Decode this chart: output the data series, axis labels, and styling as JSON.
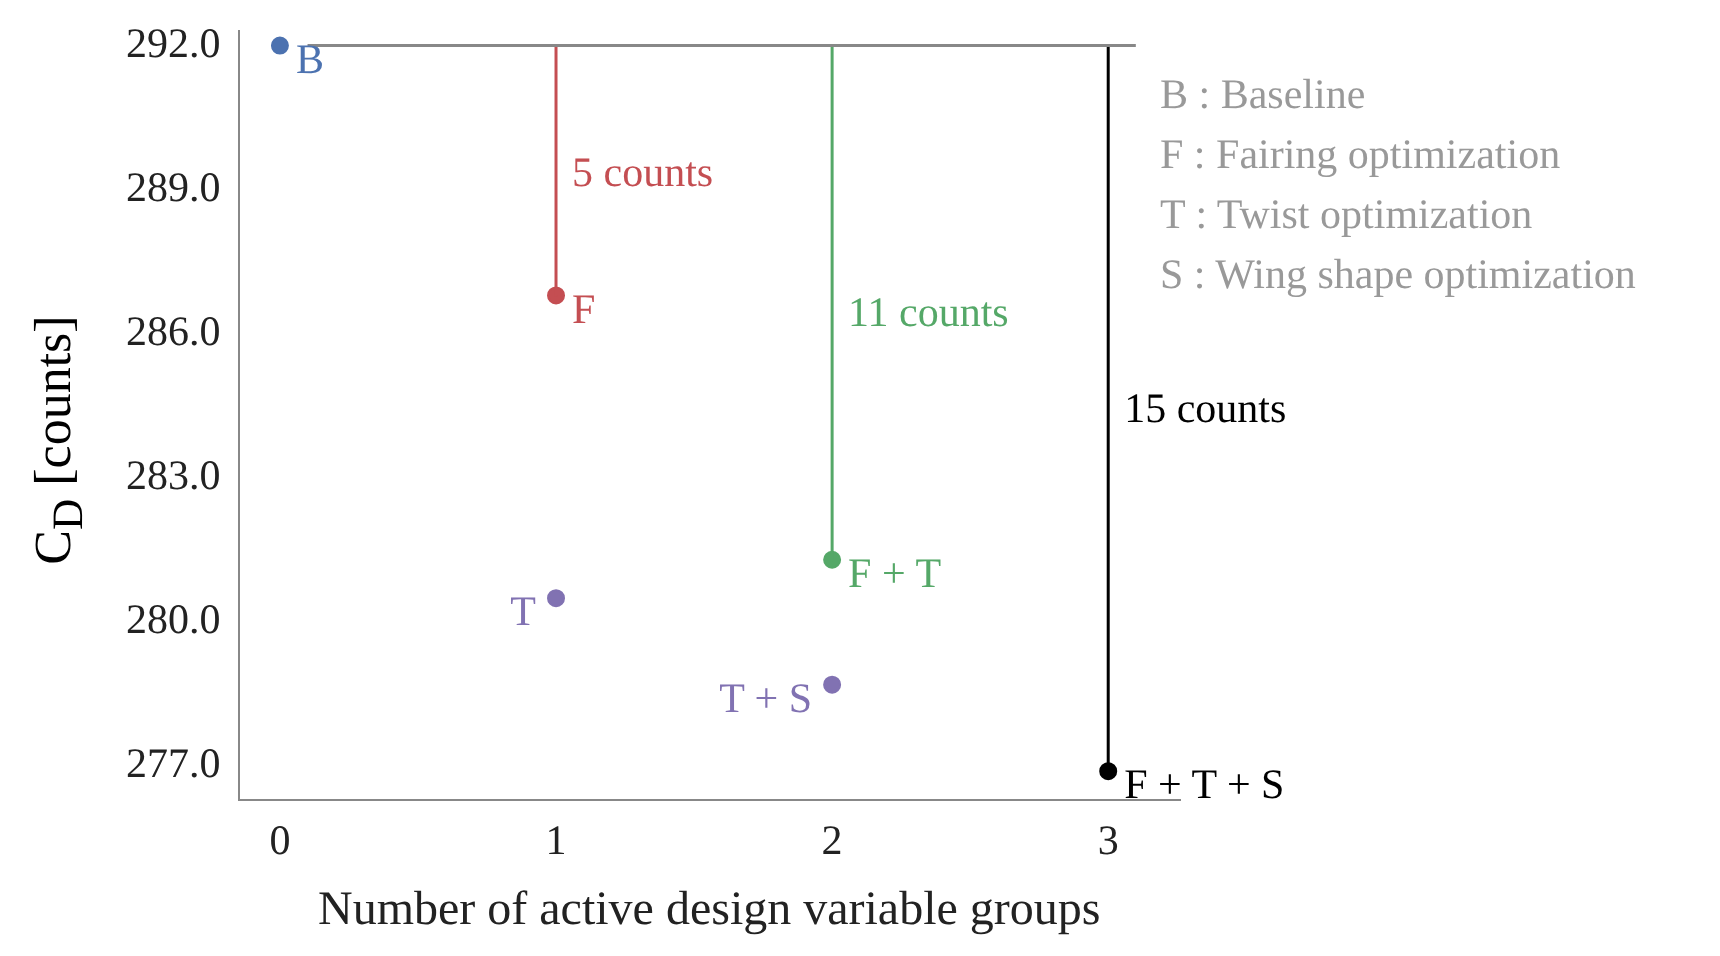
{
  "chart_data": {
    "type": "scatter",
    "xlabel": "Number of active design variable groups",
    "ylabel": "C$_{D}$ [counts]",
    "xlim": [
      -0.15,
      3.26
    ],
    "xticks": [
      0,
      1,
      2,
      3
    ],
    "ylim": [
      276.3,
      292.3
    ],
    "yticks": [
      {
        "value": 277,
        "label": "277.0"
      },
      {
        "value": 280,
        "label": "280.0"
      },
      {
        "value": 283,
        "label": "283.0"
      },
      {
        "value": 286,
        "label": "286.0"
      },
      {
        "value": 289,
        "label": "289.0"
      },
      {
        "value": 292,
        "label": "292.0"
      }
    ],
    "grid": false,
    "legend": false,
    "series": [
      {
        "type": "line",
        "color": "#888888",
        "marker": "none",
        "x": [
          0.1,
          3.1
        ],
        "values": [
          292,
          292
        ]
      },
      {
        "type": "line",
        "color": "#c44e52",
        "marker": "none",
        "x": [
          1,
          1
        ],
        "values": [
          292,
          286.8
        ]
      },
      {
        "type": "line",
        "color": "#55a868",
        "marker": "none",
        "x": [
          2,
          2
        ],
        "values": [
          292,
          281.3
        ]
      },
      {
        "type": "line",
        "color": "#000000",
        "marker": "none",
        "x": [
          3,
          3
        ],
        "values": [
          292,
          276.9
        ]
      },
      {
        "type": "scatter",
        "color": "#4c72b0",
        "marker": "circle",
        "x": [
          0
        ],
        "values": [
          292
        ]
      },
      {
        "type": "scatter",
        "color": "#c44e52",
        "marker": "circle",
        "x": [
          1
        ],
        "values": [
          286.8
        ]
      },
      {
        "type": "scatter",
        "color": "#8172b2",
        "marker": "circle",
        "x": [
          1
        ],
        "values": [
          280.5
        ]
      },
      {
        "type": "scatter",
        "color": "#55a868",
        "marker": "circle",
        "x": [
          2
        ],
        "values": [
          281.3
        ]
      },
      {
        "type": "scatter",
        "color": "#8172b2",
        "marker": "circle",
        "x": [
          2
        ],
        "values": [
          278.7
        ]
      },
      {
        "type": "scatter",
        "color": "#000000",
        "marker": "circle",
        "x": [
          3
        ],
        "values": [
          276.9
        ]
      }
    ],
    "annotations": [
      {
        "text": "B",
        "x": 0,
        "y": 292
      },
      {
        "text": "F",
        "x": 1,
        "y": 286.8
      },
      {
        "text": "5 counts",
        "x": 1,
        "y": 289.3
      },
      {
        "text": "11 counts",
        "x": 2,
        "y": 286.4
      },
      {
        "text": "15 counts",
        "x": 3,
        "y": 284.4
      },
      {
        "text": "F + T",
        "x": 2,
        "y": 281.3
      },
      {
        "text": "T",
        "x": 1,
        "y": 280.5
      },
      {
        "text": "T + S",
        "x": 2,
        "y": 278.7
      },
      {
        "text": "F + T + S",
        "x": 3,
        "y": 276.9
      },
      "B : Baseline",
      "F : Fairing optimization",
      "T : Twist optimization",
      "S : Wing shape optimization"
    ]
  }
}
